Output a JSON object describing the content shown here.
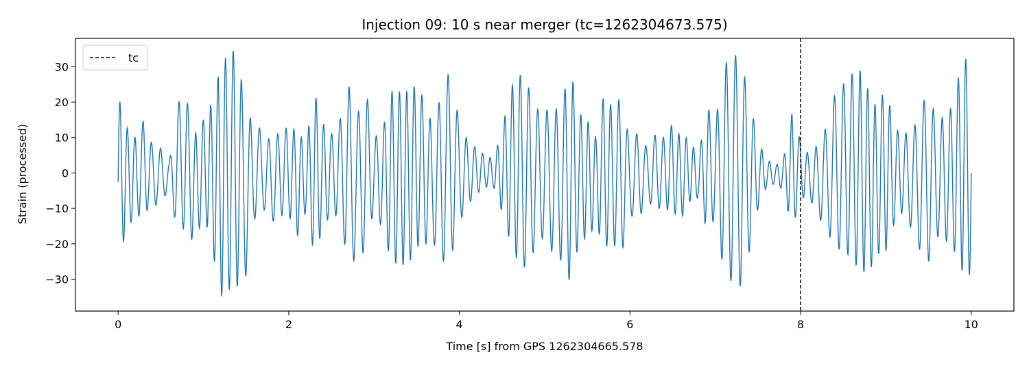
{
  "chart_data": {
    "type": "line",
    "title": "Injection 09: 10 s near merger (tc=1262304673.575)",
    "xlabel": "Time [s] from GPS 1262304665.578",
    "ylabel": "Strain (processed)",
    "xlim": [
      -0.5,
      10.5
    ],
    "ylim": [
      -39,
      38
    ],
    "xticks": [
      0,
      2,
      4,
      6,
      8,
      10
    ],
    "xtick_labels": [
      "0",
      "2",
      "4",
      "6",
      "8",
      "10"
    ],
    "yticks": [
      -30,
      -20,
      -10,
      0,
      10,
      20,
      30
    ],
    "ytick_labels": [
      "−30",
      "−20",
      "−10",
      "0",
      "10",
      "20",
      "30"
    ],
    "grid": false,
    "legend_placement": "top-left",
    "series": [
      {
        "name": "",
        "color": "#1f77b4",
        "x": [
          0.0,
          0.1,
          0.2,
          0.3,
          0.4,
          0.5,
          0.6,
          0.7,
          0.8,
          0.9,
          1.0,
          1.1,
          1.2,
          1.3,
          1.4,
          1.5,
          1.6,
          1.7,
          1.8,
          1.9,
          2.0,
          2.1,
          2.2,
          2.3,
          2.4,
          2.5,
          2.6,
          2.7,
          2.8,
          2.9,
          3.0,
          3.1,
          3.2,
          3.3,
          3.4,
          3.5,
          3.6,
          3.7,
          3.8,
          3.9,
          4.0,
          4.1,
          4.2,
          4.3,
          4.4,
          4.5,
          4.6,
          4.7,
          4.8,
          4.9,
          5.0,
          5.1,
          5.2,
          5.3,
          5.4,
          5.5,
          5.6,
          5.7,
          5.8,
          5.9,
          6.0,
          6.1,
          6.2,
          6.3,
          6.4,
          6.5,
          6.6,
          6.7,
          6.8,
          6.9,
          7.0,
          7.1,
          7.2,
          7.3,
          7.4,
          7.5,
          7.6,
          7.7,
          7.8,
          7.9,
          8.0,
          8.1,
          8.2,
          8.3,
          8.4,
          8.5,
          8.6,
          8.7,
          8.8,
          8.9,
          9.0,
          9.1,
          9.2,
          9.3,
          9.4,
          9.5,
          9.6,
          9.7,
          9.8,
          9.9,
          10.0
        ],
        "y": [
          22,
          13,
          10,
          15,
          8,
          7,
          3,
          20,
          21,
          11,
          15,
          20,
          30,
          34,
          35,
          16,
          15,
          11,
          9,
          12,
          13,
          12,
          8,
          23,
          14,
          11,
          15,
          25,
          16,
          24,
          10,
          12,
          23,
          23,
          23,
          25,
          20,
          12,
          25,
          29,
          14,
          9,
          7,
          5,
          4,
          12,
          24,
          28,
          25,
          18,
          18,
          17,
          20,
          30,
          17,
          15,
          10,
          23,
          18,
          22,
          8,
          12,
          7,
          11,
          10,
          14,
          10,
          10,
          4,
          19,
          14,
          30,
          34,
          32,
          21,
          9,
          4,
          2,
          4,
          17,
          9,
          5,
          8,
          13,
          22,
          25,
          28,
          29,
          23,
          18,
          25,
          12,
          12,
          10,
          19,
          22,
          15,
          16,
          20,
          34,
          29
        ]
      },
      {
        "name": "",
        "color": "#1f77b4",
        "x": [
          0.0,
          0.1,
          0.2,
          0.3,
          0.4,
          0.5,
          0.6,
          0.7,
          0.8,
          0.9,
          1.0,
          1.1,
          1.2,
          1.3,
          1.4,
          1.5,
          1.6,
          1.7,
          1.8,
          1.9,
          2.0,
          2.1,
          2.2,
          2.3,
          2.4,
          2.5,
          2.6,
          2.7,
          2.8,
          2.9,
          3.0,
          3.1,
          3.2,
          3.3,
          3.4,
          3.5,
          3.6,
          3.7,
          3.8,
          3.9,
          4.0,
          4.1,
          4.2,
          4.3,
          4.4,
          4.5,
          4.6,
          4.7,
          4.8,
          4.9,
          5.0,
          5.1,
          5.2,
          5.3,
          5.4,
          5.5,
          5.6,
          5.7,
          5.8,
          5.9,
          6.0,
          6.1,
          6.2,
          6.3,
          6.4,
          6.5,
          6.6,
          6.7,
          6.8,
          6.9,
          7.0,
          7.1,
          7.2,
          7.3,
          7.4,
          7.5,
          7.6,
          7.7,
          7.8,
          7.9,
          8.0,
          8.1,
          8.2,
          8.3,
          8.4,
          8.5,
          8.6,
          8.7,
          8.8,
          8.9,
          9.0,
          9.1,
          9.2,
          9.3,
          9.4,
          9.5,
          9.6,
          9.7,
          9.8,
          9.9,
          10.0
        ],
        "y": [
          -27,
          -15,
          -13,
          -11,
          -10,
          -8,
          -5,
          -17,
          -15,
          -21,
          -11,
          -21,
          -35,
          -33,
          -32,
          -29,
          -13,
          -10,
          -14,
          -12,
          -12,
          -18,
          -11,
          -23,
          -16,
          -11,
          -13,
          -26,
          -24,
          -22,
          -10,
          -16,
          -25,
          -26,
          -26,
          -21,
          -20,
          -20,
          -25,
          -24,
          -14,
          -9,
          -6,
          -4,
          -4,
          -11,
          -20,
          -26,
          -27,
          -20,
          -18,
          -23,
          -25,
          -31,
          -20,
          -18,
          -15,
          -21,
          -20,
          -23,
          -12,
          -13,
          -8,
          -10,
          -10,
          -11,
          -13,
          -8,
          -7,
          -16,
          -13,
          -28,
          -31,
          -32,
          -22,
          -10,
          -4,
          -3,
          -5,
          -16,
          -7,
          -7,
          -12,
          -16,
          -21,
          -22,
          -24,
          -28,
          -28,
          -23,
          -22,
          -14,
          -11,
          -16,
          -22,
          -25,
          -18,
          -19,
          -22,
          -28,
          -29
        ]
      }
    ],
    "vline": {
      "x": 8.0,
      "label": "tc",
      "color": "#000000",
      "style": "dashed"
    },
    "legend": [
      {
        "label": "tc",
        "style": "dashed",
        "color": "#000000"
      }
    ]
  }
}
